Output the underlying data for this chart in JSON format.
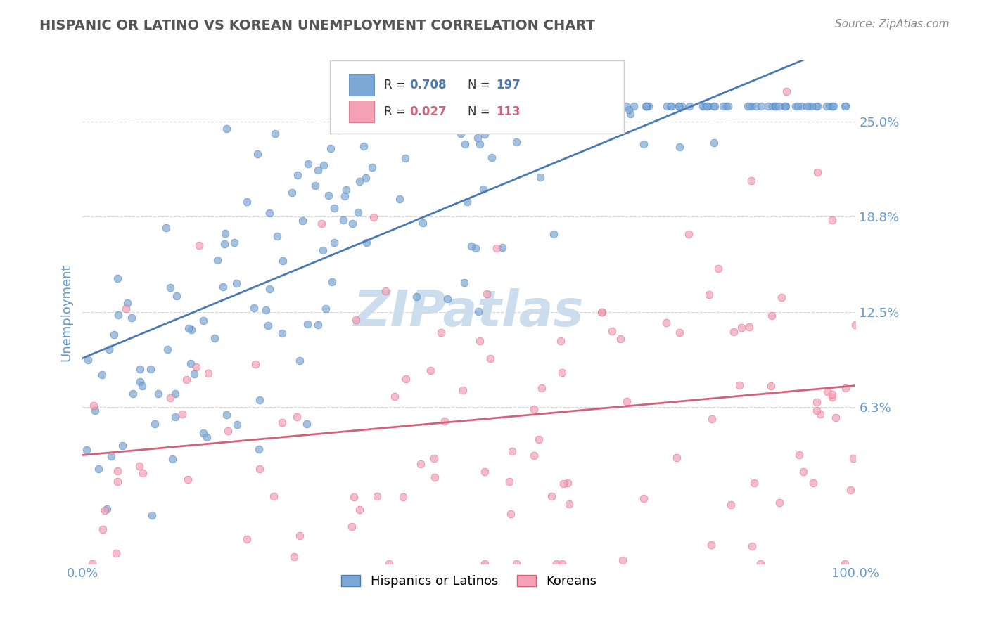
{
  "title": "HISPANIC OR LATINO VS KOREAN UNEMPLOYMENT CORRELATION CHART",
  "source": "Source: ZipAtlas.com",
  "xlabel": "",
  "ylabel": "Unemployment",
  "xlim": [
    0.0,
    1.0
  ],
  "ylim": [
    -0.04,
    0.29
  ],
  "yticks": [
    0.063,
    0.125,
    0.188,
    0.25
  ],
  "ytick_labels": [
    "6.3%",
    "12.5%",
    "18.8%",
    "25.0%"
  ],
  "xticks": [
    0.0,
    1.0
  ],
  "xtick_labels": [
    "0.0%",
    "100.0%"
  ],
  "legend_r1": "0.708",
  "legend_n1": "197",
  "legend_r2": "0.027",
  "legend_n2": "113",
  "R1": 0.708,
  "N1": 197,
  "R2": 0.027,
  "N2": 113,
  "blue_color": "#7BA7D4",
  "pink_color": "#F4A0B5",
  "blue_line_color": "#4A7AB5",
  "pink_line_color": "#D4607A",
  "title_color": "#555555",
  "source_color": "#888888",
  "tick_label_color": "#6699CC",
  "watermark_color": "#CCDDEE",
  "background_color": "#FFFFFF",
  "grid_color": "#CCCCCC",
  "seed": 42
}
